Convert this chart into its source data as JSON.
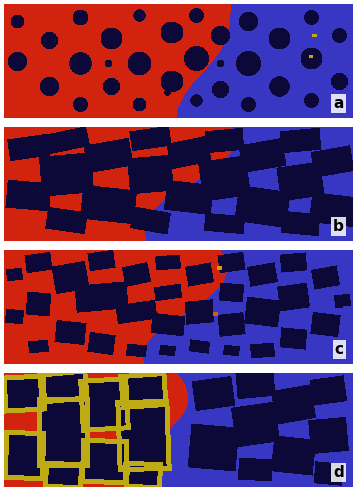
{
  "figure_width": 3.57,
  "figure_height": 5.0,
  "dpi": 100,
  "panel_labels": [
    "a",
    "b",
    "c",
    "d"
  ],
  "colors": {
    "red_fluid": [
      210,
      35,
      15
    ],
    "blue_fluid": [
      55,
      55,
      195
    ],
    "dark_particle": [
      12,
      8,
      55
    ],
    "yellow": [
      190,
      170,
      20
    ],
    "orange": [
      200,
      100,
      10
    ]
  },
  "label_fontsize": 11,
  "panel_a_circles": [
    [
      0.04,
      0.5,
      0.085
    ],
    [
      0.04,
      0.15,
      0.06
    ],
    [
      0.13,
      0.32,
      0.075
    ],
    [
      0.13,
      0.72,
      0.085
    ],
    [
      0.22,
      0.12,
      0.07
    ],
    [
      0.22,
      0.52,
      0.1
    ],
    [
      0.22,
      0.88,
      0.065
    ],
    [
      0.31,
      0.3,
      0.095
    ],
    [
      0.31,
      0.72,
      0.075
    ],
    [
      0.39,
      0.1,
      0.055
    ],
    [
      0.39,
      0.52,
      0.105
    ],
    [
      0.39,
      0.88,
      0.06
    ],
    [
      0.48,
      0.25,
      0.095
    ],
    [
      0.48,
      0.68,
      0.095
    ],
    [
      0.55,
      0.1,
      0.065
    ],
    [
      0.55,
      0.48,
      0.11
    ],
    [
      0.55,
      0.85,
      0.055
    ],
    [
      0.62,
      0.28,
      0.085
    ],
    [
      0.62,
      0.75,
      0.075
    ],
    [
      0.7,
      0.15,
      0.085
    ],
    [
      0.7,
      0.52,
      0.11
    ],
    [
      0.7,
      0.88,
      0.065
    ],
    [
      0.79,
      0.3,
      0.095
    ],
    [
      0.79,
      0.72,
      0.09
    ],
    [
      0.88,
      0.12,
      0.065
    ],
    [
      0.88,
      0.48,
      0.095
    ],
    [
      0.88,
      0.85,
      0.065
    ],
    [
      0.96,
      0.28,
      0.065
    ],
    [
      0.96,
      0.68,
      0.075
    ],
    [
      0.3,
      0.52,
      0.035
    ],
    [
      0.47,
      0.78,
      0.03
    ],
    [
      0.62,
      0.52,
      0.035
    ]
  ],
  "panel_b_rhombs": [
    [
      0.07,
      0.18,
      0.058,
      0.1,
      -8
    ],
    [
      0.07,
      0.6,
      0.065,
      0.13,
      5
    ],
    [
      0.18,
      0.12,
      0.065,
      0.09,
      -12
    ],
    [
      0.18,
      0.42,
      0.075,
      0.18,
      -5
    ],
    [
      0.18,
      0.82,
      0.058,
      0.1,
      8
    ],
    [
      0.3,
      0.25,
      0.068,
      0.13,
      -10
    ],
    [
      0.3,
      0.68,
      0.078,
      0.15,
      6
    ],
    [
      0.42,
      0.1,
      0.058,
      0.09,
      -8
    ],
    [
      0.42,
      0.42,
      0.065,
      0.16,
      -5
    ],
    [
      0.42,
      0.82,
      0.055,
      0.1,
      10
    ],
    [
      0.53,
      0.22,
      0.06,
      0.12,
      -12
    ],
    [
      0.53,
      0.62,
      0.068,
      0.14,
      7
    ],
    [
      0.63,
      0.12,
      0.055,
      0.1,
      -5
    ],
    [
      0.63,
      0.45,
      0.07,
      0.18,
      -8
    ],
    [
      0.63,
      0.85,
      0.06,
      0.08,
      5
    ],
    [
      0.74,
      0.25,
      0.065,
      0.13,
      -10
    ],
    [
      0.74,
      0.7,
      0.075,
      0.16,
      8
    ],
    [
      0.85,
      0.12,
      0.058,
      0.1,
      -5
    ],
    [
      0.85,
      0.48,
      0.065,
      0.15,
      -8
    ],
    [
      0.85,
      0.85,
      0.055,
      0.1,
      5
    ],
    [
      0.94,
      0.3,
      0.06,
      0.12,
      -10
    ],
    [
      0.94,
      0.72,
      0.065,
      0.14,
      7
    ]
  ],
  "panel_c_rhombs": [
    [
      0.03,
      0.22,
      0.025,
      0.06,
      -5
    ],
    [
      0.03,
      0.58,
      0.028,
      0.07,
      3
    ],
    [
      0.1,
      0.12,
      0.038,
      0.08,
      -8
    ],
    [
      0.1,
      0.48,
      0.035,
      0.1,
      5
    ],
    [
      0.1,
      0.85,
      0.03,
      0.06,
      -3
    ],
    [
      0.19,
      0.25,
      0.05,
      0.13,
      -10
    ],
    [
      0.19,
      0.72,
      0.045,
      0.1,
      6
    ],
    [
      0.28,
      0.1,
      0.04,
      0.08,
      -8
    ],
    [
      0.28,
      0.42,
      0.075,
      0.12,
      -5
    ],
    [
      0.28,
      0.82,
      0.04,
      0.09,
      8
    ],
    [
      0.38,
      0.22,
      0.04,
      0.09,
      -12
    ],
    [
      0.38,
      0.55,
      0.058,
      0.08,
      -8
    ],
    [
      0.38,
      0.88,
      0.03,
      0.06,
      5
    ],
    [
      0.47,
      0.12,
      0.035,
      0.07,
      -5
    ],
    [
      0.47,
      0.38,
      0.04,
      0.07,
      -8
    ],
    [
      0.47,
      0.65,
      0.048,
      0.09,
      6
    ],
    [
      0.47,
      0.88,
      0.025,
      0.05,
      3
    ],
    [
      0.56,
      0.22,
      0.038,
      0.09,
      -10
    ],
    [
      0.56,
      0.55,
      0.042,
      0.1,
      -5
    ],
    [
      0.56,
      0.85,
      0.03,
      0.06,
      7
    ],
    [
      0.65,
      0.12,
      0.038,
      0.08,
      -8
    ],
    [
      0.65,
      0.38,
      0.035,
      0.08,
      5
    ],
    [
      0.65,
      0.65,
      0.04,
      0.1,
      -6
    ],
    [
      0.65,
      0.88,
      0.025,
      0.05,
      3
    ],
    [
      0.74,
      0.22,
      0.042,
      0.09,
      -10
    ],
    [
      0.74,
      0.55,
      0.05,
      0.12,
      7
    ],
    [
      0.74,
      0.88,
      0.035,
      0.07,
      -3
    ],
    [
      0.83,
      0.12,
      0.038,
      0.08,
      -5
    ],
    [
      0.83,
      0.42,
      0.045,
      0.11,
      -8
    ],
    [
      0.83,
      0.78,
      0.04,
      0.09,
      5
    ],
    [
      0.92,
      0.25,
      0.038,
      0.09,
      -10
    ],
    [
      0.92,
      0.65,
      0.042,
      0.1,
      7
    ],
    [
      0.97,
      0.45,
      0.025,
      0.06,
      -5
    ]
  ],
  "panel_d_rhombs_left": [
    [
      0.06,
      0.18,
      0.05,
      0.13,
      -3
    ],
    [
      0.06,
      0.72,
      0.048,
      0.18,
      2
    ],
    [
      0.17,
      0.12,
      0.058,
      0.1,
      -5
    ],
    [
      0.17,
      0.52,
      0.065,
      0.28,
      0
    ],
    [
      0.17,
      0.9,
      0.045,
      0.08,
      3
    ],
    [
      0.29,
      0.28,
      0.06,
      0.2,
      -3
    ],
    [
      0.29,
      0.78,
      0.055,
      0.16,
      2
    ],
    [
      0.4,
      0.15,
      0.055,
      0.12,
      -4
    ],
    [
      0.4,
      0.55,
      0.065,
      0.28,
      -2
    ],
    [
      0.4,
      0.9,
      0.042,
      0.08,
      3
    ]
  ],
  "panel_d_rhombs_right": [
    [
      0.6,
      0.18,
      0.06,
      0.14,
      -8
    ],
    [
      0.6,
      0.65,
      0.07,
      0.2,
      5
    ],
    [
      0.72,
      0.1,
      0.055,
      0.12,
      -5
    ],
    [
      0.72,
      0.45,
      0.065,
      0.18,
      -8
    ],
    [
      0.72,
      0.85,
      0.05,
      0.1,
      3
    ],
    [
      0.83,
      0.28,
      0.058,
      0.15,
      -10
    ],
    [
      0.83,
      0.72,
      0.062,
      0.16,
      6
    ],
    [
      0.93,
      0.15,
      0.05,
      0.12,
      -8
    ],
    [
      0.93,
      0.55,
      0.055,
      0.15,
      -5
    ],
    [
      0.93,
      0.88,
      0.042,
      0.1,
      5
    ]
  ]
}
